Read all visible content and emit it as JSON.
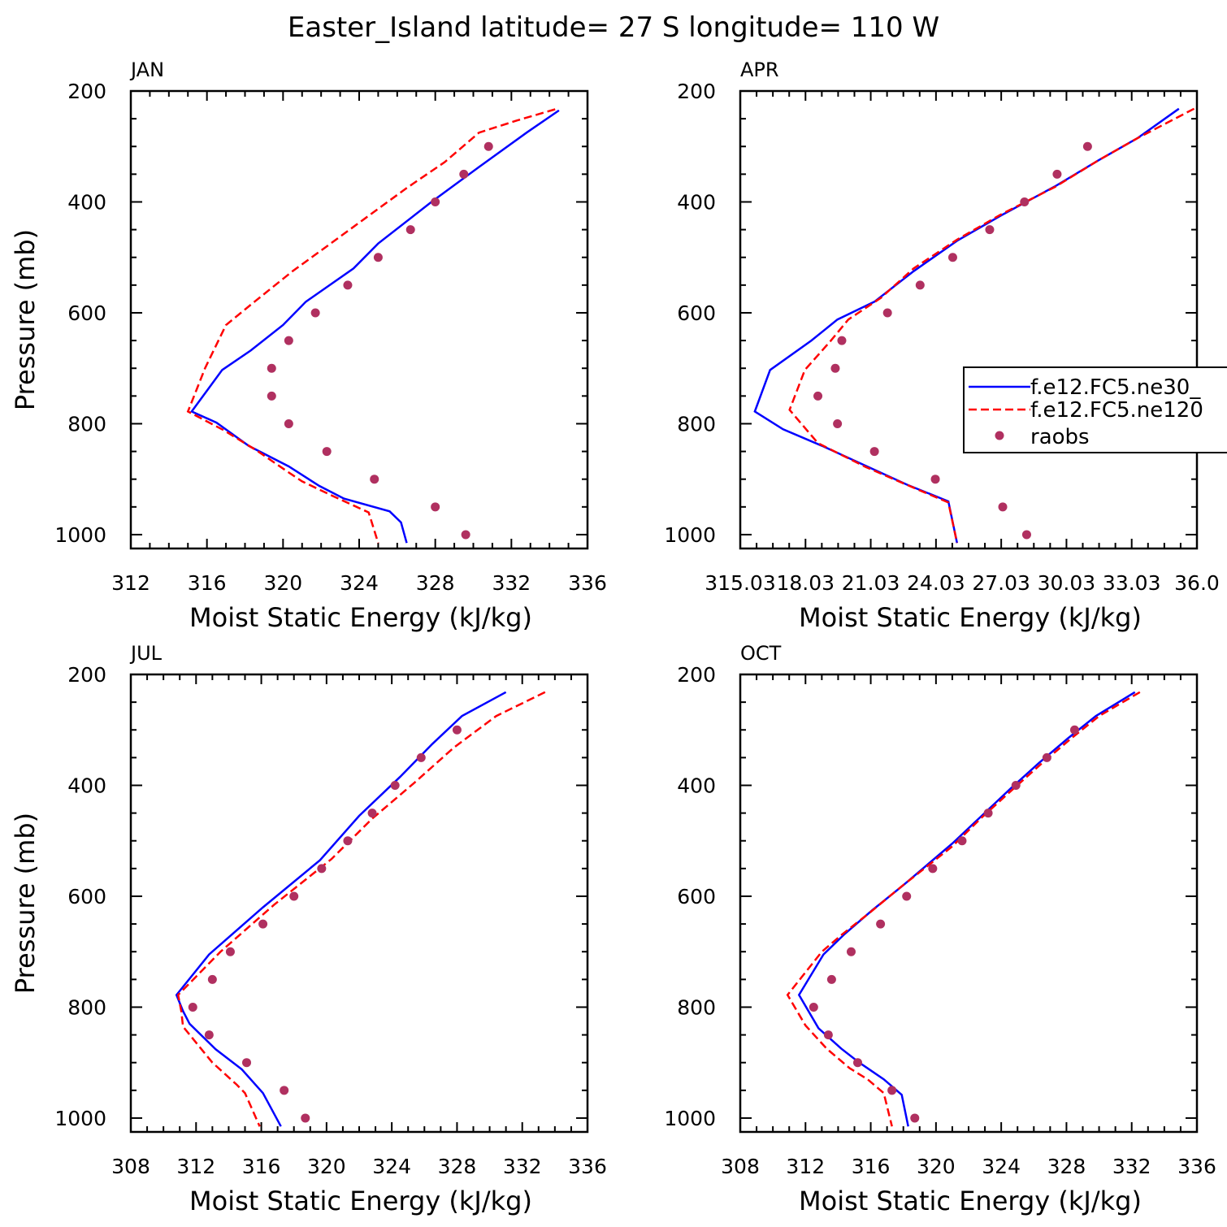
{
  "figure_title": "Easter_Island  latitude= 27 S longitude= 110 W",
  "colors": {
    "model1": "#0000ff",
    "model2": "#ff0000",
    "obs": "#b03060"
  },
  "legend": {
    "entries": [
      "f.e12.FC5.ne30_",
      "f.e12.FC5.ne120",
      "raobs"
    ]
  },
  "chart_data": [
    {
      "type": "line",
      "panel": "JAN",
      "title": "JAN",
      "xlabel": "Moist Static Energy (kJ/kg)",
      "ylabel": "Pressure (mb)",
      "xlim": [
        312,
        336
      ],
      "ylim": [
        1025,
        200
      ],
      "xticks": [
        "312",
        "316",
        "320",
        "324",
        "328",
        "332",
        "336"
      ],
      "yticks": [
        "200",
        "400",
        "600",
        "800",
        "1000"
      ],
      "series": [
        {
          "name": "f.e12.FC5.ne30_",
          "style": "solid",
          "points": [
            [
              334.5,
              235
            ],
            [
              332.8,
              275
            ],
            [
              330.3,
              337
            ],
            [
              327.8,
              400
            ],
            [
              325.0,
              475
            ],
            [
              323.7,
              520
            ],
            [
              321.2,
              580
            ],
            [
              320.0,
              622
            ],
            [
              318.3,
              668
            ],
            [
              316.8,
              703
            ],
            [
              315.2,
              778
            ],
            [
              316.5,
              798
            ],
            [
              318.2,
              840
            ],
            [
              320.3,
              877
            ],
            [
              321.9,
              912
            ],
            [
              323.2,
              935
            ],
            [
              325.6,
              958
            ],
            [
              326.2,
              978
            ],
            [
              326.5,
              1015
            ]
          ]
        },
        {
          "name": "f.e12.FC5.ne120",
          "style": "dashed",
          "points": [
            [
              334.3,
              233
            ],
            [
              332.3,
              253
            ],
            [
              330.3,
              275
            ],
            [
              328.5,
              328
            ],
            [
              326.5,
              375
            ],
            [
              324.5,
              425
            ],
            [
              322.5,
              475
            ],
            [
              320.5,
              525
            ],
            [
              318.5,
              580
            ],
            [
              317.0,
              622
            ],
            [
              315.9,
              700
            ],
            [
              315.0,
              778
            ],
            [
              316.9,
              812
            ],
            [
              318.6,
              848
            ],
            [
              320.3,
              888
            ],
            [
              321.0,
              904
            ],
            [
              322.6,
              930
            ],
            [
              324.5,
              960
            ],
            [
              325.0,
              1015
            ]
          ]
        },
        {
          "name": "raobs",
          "style": "markers",
          "points": [
            [
              330.8,
              300
            ],
            [
              329.5,
              350
            ],
            [
              328.0,
              400
            ],
            [
              326.7,
              450
            ],
            [
              325.0,
              500
            ],
            [
              323.4,
              550
            ],
            [
              321.7,
              600
            ],
            [
              320.3,
              650
            ],
            [
              319.4,
              700
            ],
            [
              319.4,
              750
            ],
            [
              320.3,
              800
            ],
            [
              322.3,
              850
            ],
            [
              324.8,
              900
            ],
            [
              328.0,
              950
            ],
            [
              329.6,
              1000
            ]
          ]
        }
      ]
    },
    {
      "type": "line",
      "panel": "APR",
      "title": "APR",
      "xlabel": "Moist Static Energy (kJ/kg)",
      "ylabel": "",
      "xlim": [
        315.03,
        336.03
      ],
      "ylim": [
        1025,
        200
      ],
      "xticks": [
        "315.03",
        "18.03",
        "21.03",
        "24.03",
        "27.03",
        "30.03",
        "33.03",
        "36.0"
      ],
      "yticks": [
        "200",
        "400",
        "600",
        "800",
        "1000"
      ],
      "series": [
        {
          "name": "f.e12.FC5.ne30_",
          "style": "solid",
          "points": [
            [
              335.2,
              232
            ],
            [
              333.3,
              285
            ],
            [
              331.5,
              325
            ],
            [
              329.5,
              372
            ],
            [
              327.0,
              425
            ],
            [
              325.0,
              470
            ],
            [
              323.0,
              525
            ],
            [
              321.2,
              580
            ],
            [
              319.5,
              612
            ],
            [
              318.3,
              650
            ],
            [
              316.4,
              703
            ],
            [
              315.7,
              778
            ],
            [
              317.0,
              810
            ],
            [
              318.8,
              840
            ],
            [
              320.8,
              876
            ],
            [
              322.7,
              910
            ],
            [
              324.6,
              940
            ],
            [
              325.0,
              1015
            ]
          ]
        },
        {
          "name": "f.e12.FC5.ne120",
          "style": "dashed",
          "points": [
            [
              335.9,
              232
            ],
            [
              333.3,
              285
            ],
            [
              331.5,
              325
            ],
            [
              329.5,
              373
            ],
            [
              327.0,
              423
            ],
            [
              325.0,
              468
            ],
            [
              323.0,
              520
            ],
            [
              321.5,
              573
            ],
            [
              320.0,
              612
            ],
            [
              319.2,
              650
            ],
            [
              318.0,
              703
            ],
            [
              317.3,
              775
            ],
            [
              318.6,
              835
            ],
            [
              320.8,
              878
            ],
            [
              322.8,
              912
            ],
            [
              324.6,
              942
            ],
            [
              325.0,
              1015
            ]
          ]
        },
        {
          "name": "raobs",
          "style": "markers",
          "points": [
            [
              331.0,
              300
            ],
            [
              329.6,
              350
            ],
            [
              328.1,
              400
            ],
            [
              326.5,
              450
            ],
            [
              324.8,
              500
            ],
            [
              323.3,
              550
            ],
            [
              321.8,
              600
            ],
            [
              319.7,
              650
            ],
            [
              319.4,
              700
            ],
            [
              318.6,
              750
            ],
            [
              319.5,
              800
            ],
            [
              321.2,
              850
            ],
            [
              324.0,
              900
            ],
            [
              327.1,
              950
            ],
            [
              328.2,
              1000
            ]
          ]
        }
      ]
    },
    {
      "type": "line",
      "panel": "JUL",
      "title": "JUL",
      "xlabel": "Moist Static Energy (kJ/kg)",
      "ylabel": "Pressure (mb)",
      "xlim": [
        308,
        336
      ],
      "ylim": [
        1025,
        200
      ],
      "xticks": [
        "308",
        "312",
        "316",
        "320",
        "324",
        "328",
        "332",
        "336"
      ],
      "yticks": [
        "200",
        "400",
        "600",
        "800",
        "1000"
      ],
      "series": [
        {
          "name": "f.e12.FC5.ne30_",
          "style": "solid",
          "points": [
            [
              331.0,
              232
            ],
            [
              328.3,
              275
            ],
            [
              326.5,
              325
            ],
            [
              324.5,
              385
            ],
            [
              322.0,
              455
            ],
            [
              319.6,
              535
            ],
            [
              316.1,
              620
            ],
            [
              312.8,
              705
            ],
            [
              310.8,
              778
            ],
            [
              311.2,
              807
            ],
            [
              311.6,
              830
            ],
            [
              313.2,
              876
            ],
            [
              314.8,
              912
            ],
            [
              316.1,
              955
            ],
            [
              317.2,
              1015
            ]
          ]
        },
        {
          "name": "f.e12.FC5.ne120",
          "style": "dashed",
          "points": [
            [
              333.4,
              232
            ],
            [
              330.4,
              275
            ],
            [
              327.8,
              332
            ],
            [
              325.4,
              395
            ],
            [
              322.8,
              460
            ],
            [
              320.3,
              533
            ],
            [
              316.8,
              615
            ],
            [
              313.5,
              700
            ],
            [
              310.9,
              778
            ],
            [
              311.1,
              808
            ],
            [
              311.2,
              835
            ],
            [
              313.0,
              900
            ],
            [
              314.5,
              940
            ],
            [
              315.0,
              955
            ],
            [
              315.9,
              1015
            ]
          ]
        },
        {
          "name": "raobs",
          "style": "markers",
          "points": [
            [
              328.0,
              300
            ],
            [
              325.8,
              350
            ],
            [
              324.2,
              400
            ],
            [
              322.8,
              450
            ],
            [
              321.3,
              500
            ],
            [
              319.7,
              550
            ],
            [
              318.0,
              600
            ],
            [
              316.1,
              650
            ],
            [
              314.1,
              700
            ],
            [
              313.0,
              750
            ],
            [
              311.8,
              800
            ],
            [
              312.8,
              850
            ],
            [
              315.1,
              900
            ],
            [
              317.4,
              950
            ],
            [
              318.7,
              1000
            ]
          ]
        }
      ]
    },
    {
      "type": "line",
      "panel": "OCT",
      "title": "OCT",
      "xlabel": "Moist Static Energy (kJ/kg)",
      "ylabel": "",
      "xlim": [
        308,
        336
      ],
      "ylim": [
        1025,
        200
      ],
      "xticks": [
        "308",
        "312",
        "316",
        "320",
        "324",
        "328",
        "332",
        "336"
      ],
      "yticks": [
        "200",
        "400",
        "600",
        "800",
        "1000"
      ],
      "series": [
        {
          "name": "f.e12.FC5.ne30_",
          "style": "solid",
          "points": [
            [
              332.2,
              232
            ],
            [
              329.8,
              275
            ],
            [
              328.1,
              315
            ],
            [
              326.3,
              360
            ],
            [
              324.6,
              405
            ],
            [
              322.8,
              455
            ],
            [
              321.0,
              505
            ],
            [
              319.2,
              550
            ],
            [
              318.0,
              580
            ],
            [
              316.1,
              625
            ],
            [
              314.4,
              668
            ],
            [
              313.1,
              705
            ],
            [
              311.6,
              778
            ],
            [
              312.8,
              838
            ],
            [
              314.2,
              875
            ],
            [
              315.3,
              900
            ],
            [
              316.8,
              930
            ],
            [
              317.9,
              958
            ],
            [
              318.3,
              1015
            ]
          ]
        },
        {
          "name": "f.e12.FC5.ne120",
          "style": "dashed",
          "points": [
            [
              332.5,
              232
            ],
            [
              330.0,
              275
            ],
            [
              328.3,
              315
            ],
            [
              326.5,
              360
            ],
            [
              324.6,
              410
            ],
            [
              322.8,
              458
            ],
            [
              321.0,
              510
            ],
            [
              319.2,
              552
            ],
            [
              317.9,
              582
            ],
            [
              316.0,
              628
            ],
            [
              314.2,
              670
            ],
            [
              313.0,
              700
            ],
            [
              310.9,
              778
            ],
            [
              312.0,
              833
            ],
            [
              313.3,
              875
            ],
            [
              314.7,
              910
            ],
            [
              315.8,
              930
            ],
            [
              316.8,
              955
            ],
            [
              317.3,
              1015
            ]
          ]
        },
        {
          "name": "raobs",
          "style": "markers",
          "points": [
            [
              328.5,
              300
            ],
            [
              326.8,
              350
            ],
            [
              324.9,
              400
            ],
            [
              323.2,
              450
            ],
            [
              321.6,
              500
            ],
            [
              319.8,
              550
            ],
            [
              318.2,
              600
            ],
            [
              316.6,
              650
            ],
            [
              314.8,
              700
            ],
            [
              313.6,
              750
            ],
            [
              312.5,
              800
            ],
            [
              313.4,
              850
            ],
            [
              315.2,
              900
            ],
            [
              317.3,
              950
            ],
            [
              318.7,
              1000
            ]
          ]
        }
      ]
    }
  ]
}
